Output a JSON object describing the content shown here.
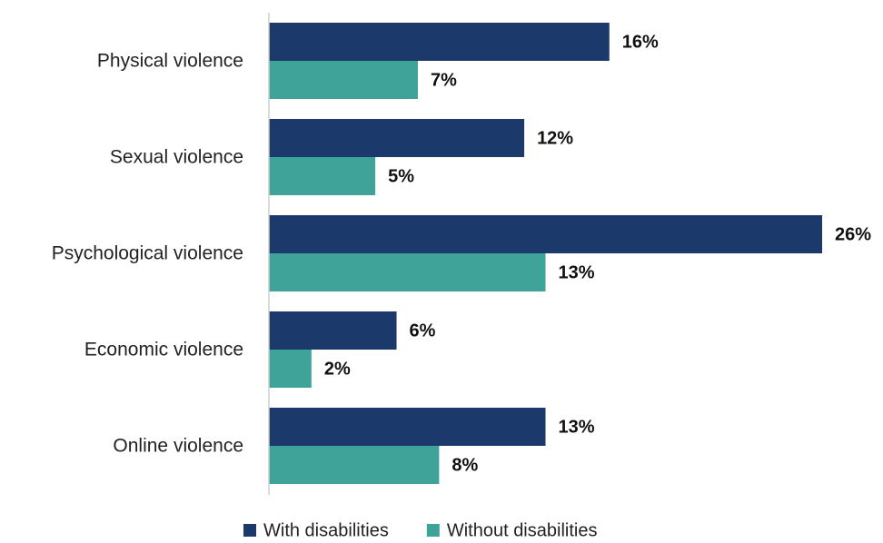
{
  "chart_data": {
    "type": "bar",
    "orientation": "horizontal",
    "categories": [
      "Physical violence",
      "Sexual violence",
      "Psychological violence",
      "Economic violence",
      "Online violence"
    ],
    "series": [
      {
        "name": "With disabilities",
        "values": [
          16,
          12,
          26,
          6,
          13
        ],
        "labels": [
          "16%",
          "12%",
          "26%",
          "6%",
          "13%"
        ],
        "color": "#1b3a6b"
      },
      {
        "name": "Without disabilities",
        "values": [
          7,
          5,
          13,
          2,
          8
        ],
        "labels": [
          "7%",
          "5%",
          "13%",
          "2%",
          "8%"
        ],
        "color": "#3fa39a"
      }
    ],
    "xlim": [
      0,
      26
    ],
    "grid": false,
    "legend_position": "bottom"
  }
}
